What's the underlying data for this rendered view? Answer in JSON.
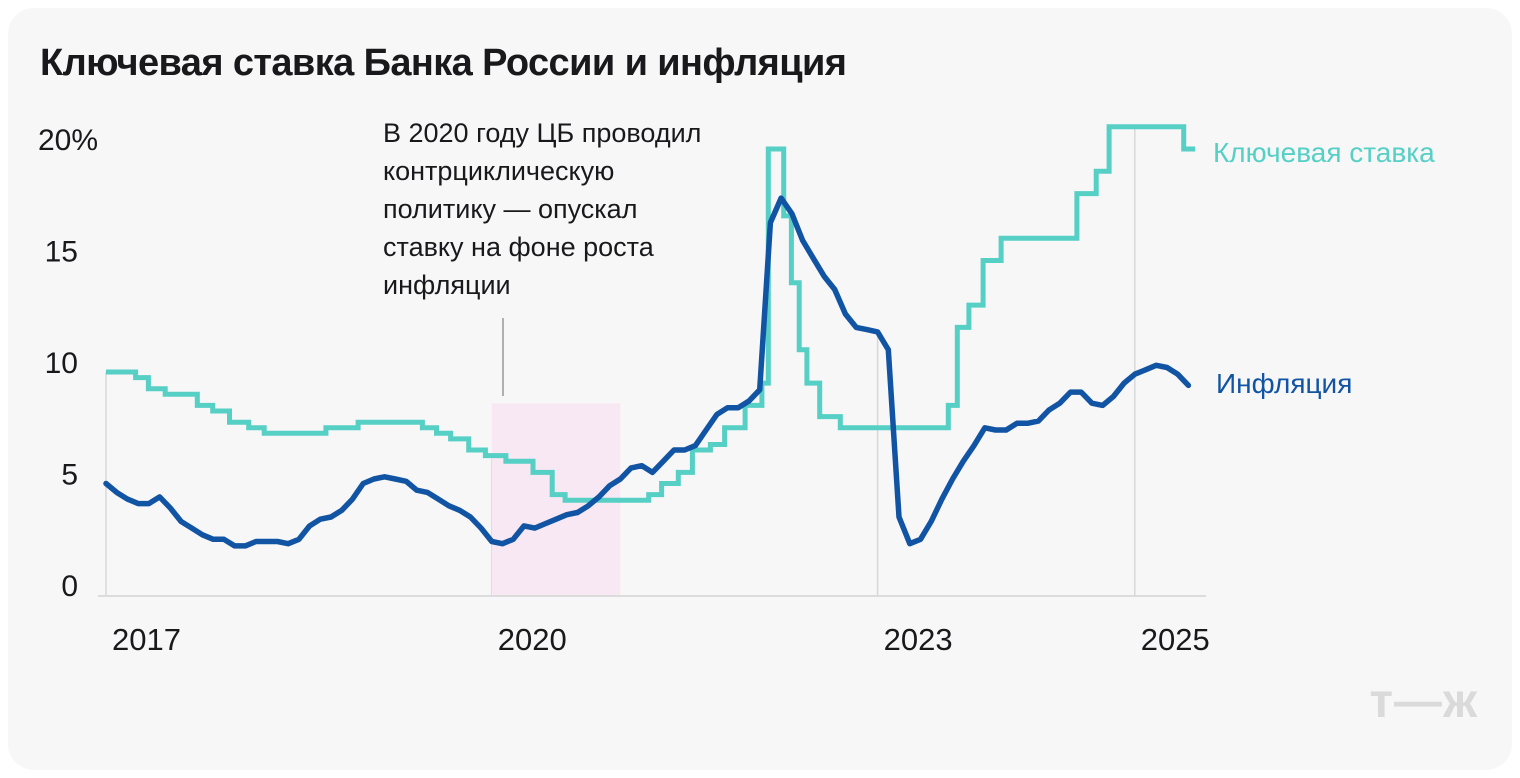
{
  "page": {
    "title": "Ключевая ставка Банка России и инфляция",
    "logo_text": "т—ж"
  },
  "annotation": {
    "lines": [
      "В 2020 году ЦБ проводил",
      "контрциклическую",
      "политику — опускал",
      "ставку на фоне роста",
      "инфляции"
    ]
  },
  "legend": {
    "key_rate": "Ключевая ставка",
    "inflation": "Инфляция"
  },
  "colors": {
    "key_rate": "#56cfc5",
    "inflation": "#1254a4",
    "highlight": "#f8e8f4",
    "grid": "#d8d8d8",
    "axis": "#d4d4d4",
    "connector": "#999999",
    "text": "#19191c",
    "card_bg": "#f7f7f8",
    "logo": "#dadada"
  },
  "chart_data": {
    "type": "line",
    "title": "Ключевая ставка Банка России и инфляция",
    "xlabel": "",
    "ylabel": "%",
    "x_range": [
      2017.0,
      2025.55
    ],
    "y_range": [
      0,
      21.5
    ],
    "x_axis": {
      "ticks": [
        {
          "year": 2017,
          "label": "2017"
        },
        {
          "year": 2020,
          "label": "2020"
        },
        {
          "year": 2023,
          "label": "2023"
        },
        {
          "year": 2025,
          "label": "2025"
        }
      ]
    },
    "y_axis": {
      "ticks": [
        {
          "v": 0,
          "label": "0"
        },
        {
          "v": 5,
          "label": "5"
        },
        {
          "v": 10,
          "label": "10"
        },
        {
          "v": 15,
          "label": "15"
        },
        {
          "v": 20,
          "label": "20%"
        }
      ]
    },
    "gridlines": [
      {
        "year": 2017,
        "top": 10.0
      },
      {
        "year": 2020,
        "top": 6.25
      },
      {
        "year": 2023,
        "top": 11.8
      },
      {
        "year": 2025,
        "top": 21.0
      }
    ],
    "highlight_region": {
      "x_from": 2020.0,
      "x_to": 2021.0,
      "y_from": 0,
      "y_to": 8.6
    },
    "series": [
      {
        "name": "Ключевая ставка",
        "type": "step",
        "color": "#56cfc5",
        "unit": "%",
        "points": [
          [
            2017.0,
            10.0
          ],
          [
            2017.23,
            9.75
          ],
          [
            2017.33,
            9.25
          ],
          [
            2017.46,
            9.0
          ],
          [
            2017.71,
            8.5
          ],
          [
            2017.83,
            8.25
          ],
          [
            2017.96,
            7.75
          ],
          [
            2018.11,
            7.5
          ],
          [
            2018.23,
            7.25
          ],
          [
            2018.71,
            7.5
          ],
          [
            2018.96,
            7.75
          ],
          [
            2019.46,
            7.5
          ],
          [
            2019.57,
            7.25
          ],
          [
            2019.68,
            7.0
          ],
          [
            2019.82,
            6.5
          ],
          [
            2019.95,
            6.25
          ],
          [
            2020.11,
            6.0
          ],
          [
            2020.32,
            5.5
          ],
          [
            2020.47,
            4.5
          ],
          [
            2020.57,
            4.25
          ],
          [
            2021.22,
            4.5
          ],
          [
            2021.32,
            5.0
          ],
          [
            2021.45,
            5.5
          ],
          [
            2021.56,
            6.5
          ],
          [
            2021.7,
            6.75
          ],
          [
            2021.81,
            7.5
          ],
          [
            2021.97,
            8.5
          ],
          [
            2022.1,
            9.5
          ],
          [
            2022.15,
            20.0
          ],
          [
            2022.27,
            17.0
          ],
          [
            2022.33,
            14.0
          ],
          [
            2022.39,
            11.0
          ],
          [
            2022.45,
            9.5
          ],
          [
            2022.55,
            8.0
          ],
          [
            2022.71,
            7.5
          ],
          [
            2023.55,
            8.5
          ],
          [
            2023.62,
            12.0
          ],
          [
            2023.71,
            13.0
          ],
          [
            2023.82,
            15.0
          ],
          [
            2023.96,
            16.0
          ],
          [
            2024.55,
            18.0
          ],
          [
            2024.7,
            19.0
          ],
          [
            2024.8,
            21.0
          ],
          [
            2025.38,
            20.0
          ]
        ],
        "end_t": 2025.47
      },
      {
        "name": "Инфляция",
        "type": "line",
        "color": "#1254a4",
        "unit": "%",
        "start_year": 2017,
        "start_month": 1,
        "monthly_values": [
          5.0,
          4.6,
          4.3,
          4.1,
          4.1,
          4.4,
          3.9,
          3.3,
          3.0,
          2.7,
          2.5,
          2.5,
          2.2,
          2.2,
          2.4,
          2.4,
          2.4,
          2.3,
          2.5,
          3.1,
          3.4,
          3.5,
          3.8,
          4.3,
          5.0,
          5.2,
          5.3,
          5.2,
          5.1,
          4.7,
          4.6,
          4.3,
          4.0,
          3.8,
          3.5,
          3.0,
          2.4,
          2.3,
          2.5,
          3.1,
          3.0,
          3.2,
          3.4,
          3.6,
          3.7,
          4.0,
          4.4,
          4.9,
          5.2,
          5.7,
          5.8,
          5.5,
          6.0,
          6.5,
          6.5,
          6.7,
          7.4,
          8.1,
          8.4,
          8.4,
          8.7,
          9.2,
          16.7,
          17.8,
          17.1,
          15.9,
          15.1,
          14.3,
          13.7,
          12.6,
          12.0,
          11.9,
          11.8,
          11.0,
          3.5,
          2.3,
          2.5,
          3.3,
          4.3,
          5.2,
          6.0,
          6.7,
          7.5,
          7.4,
          7.4,
          7.7,
          7.7,
          7.8,
          8.3,
          8.6,
          9.1,
          9.1,
          8.6,
          8.5,
          8.9,
          9.5,
          9.9,
          10.1,
          10.3,
          10.2,
          9.9,
          9.4
        ]
      }
    ]
  }
}
